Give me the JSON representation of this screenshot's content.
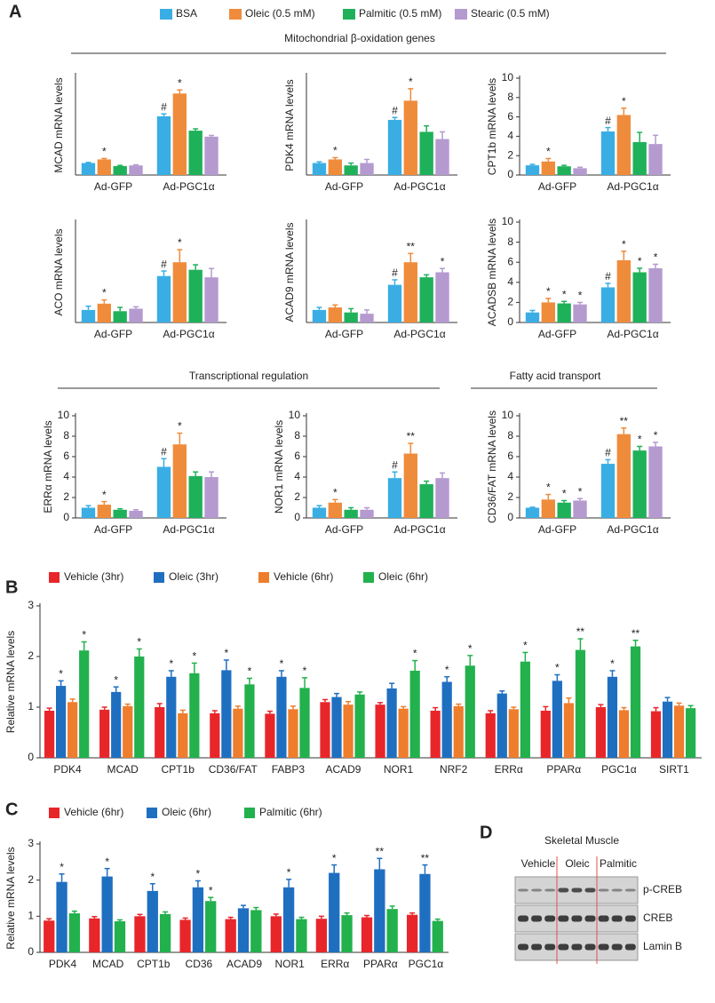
{
  "figure": {
    "panel_labels": [
      "A",
      "B",
      "C",
      "D"
    ],
    "section_headers": [
      "Mitochondrial β-oxidation genes",
      "Transcriptional regulation",
      "Fatty acid transport"
    ],
    "panel_a_legend": [
      {
        "name": "BSA",
        "color": "#3aaee4"
      },
      {
        "name": "Oleic (0.5 mM)",
        "color": "#ef8c3c"
      },
      {
        "name": "Palmitic (0.5 mM)",
        "color": "#1fb15a"
      },
      {
        "name": "Stearic (0.5 mM)",
        "color": "#b59ad0"
      }
    ]
  },
  "chart_data": [
    {
      "type": "bar",
      "ylabel": "MCAD mRNA levels",
      "categories": [
        "Ad-GFP",
        "Ad-PGC1α"
      ],
      "ylim": [
        0,
        8.3
      ],
      "series": [
        {
          "values": [
            1.0,
            4.9
          ],
          "errors": [
            0.05,
            0.2
          ],
          "markers": [
            null,
            "#"
          ]
        },
        {
          "values": [
            1.3,
            6.8
          ],
          "errors": [
            0.08,
            0.3
          ],
          "markers": [
            "*",
            "*"
          ]
        },
        {
          "values": [
            0.75,
            3.7
          ],
          "errors": [
            0.05,
            0.15
          ],
          "markers": [
            null,
            null
          ]
        },
        {
          "values": [
            0.8,
            3.2
          ],
          "errors": [
            0.05,
            0.1
          ],
          "markers": [
            null,
            null
          ]
        }
      ]
    },
    {
      "type": "bar",
      "ylabel": "PDK4 mRNA levels",
      "categories": [
        "Ad-GFP",
        "Ad-PGC1α"
      ],
      "ylim": [
        0,
        8.3
      ],
      "series": [
        {
          "values": [
            1.0,
            4.6
          ],
          "errors": [
            0.1,
            0.2
          ],
          "markers": [
            null,
            "#"
          ]
        },
        {
          "values": [
            1.3,
            6.2
          ],
          "errors": [
            0.15,
            1.0
          ],
          "markers": [
            "*",
            "*"
          ]
        },
        {
          "values": [
            0.8,
            3.6
          ],
          "errors": [
            0.2,
            0.5
          ],
          "markers": [
            null,
            null
          ]
        },
        {
          "values": [
            1.0,
            3.0
          ],
          "errors": [
            0.3,
            0.6
          ],
          "markers": [
            null,
            null
          ]
        }
      ]
    },
    {
      "type": "bar",
      "ylabel": "CPT1b mRNA levels",
      "categories": [
        "Ad-GFP",
        "Ad-PGC1α"
      ],
      "ylim": [
        0,
        10
      ],
      "yticks": [
        0,
        2,
        4,
        6,
        8,
        10
      ],
      "series": [
        {
          "values": [
            1.0,
            4.5
          ],
          "errors": [
            0.1,
            0.4
          ],
          "markers": [
            null,
            "#"
          ]
        },
        {
          "values": [
            1.4,
            6.2
          ],
          "errors": [
            0.3,
            0.7
          ],
          "markers": [
            "*",
            "*"
          ]
        },
        {
          "values": [
            0.9,
            3.4
          ],
          "errors": [
            0.1,
            1.0
          ],
          "markers": [
            null,
            null
          ]
        },
        {
          "values": [
            0.7,
            3.2
          ],
          "errors": [
            0.1,
            0.9
          ],
          "markers": [
            null,
            null
          ]
        }
      ]
    },
    {
      "type": "bar",
      "ylabel": "ACO mRNA levels",
      "categories": [
        "Ad-GFP",
        "Ad-PGC1α"
      ],
      "ylim": [
        0,
        8
      ],
      "series": [
        {
          "values": [
            1.0,
            3.7
          ],
          "errors": [
            0.3,
            0.4
          ],
          "markers": [
            null,
            "#"
          ]
        },
        {
          "values": [
            1.5,
            4.8
          ],
          "errors": [
            0.3,
            1.0
          ],
          "markers": [
            "*",
            "*"
          ]
        },
        {
          "values": [
            0.9,
            4.2
          ],
          "errors": [
            0.3,
            0.4
          ],
          "markers": [
            null,
            null
          ]
        },
        {
          "values": [
            1.1,
            3.6
          ],
          "errors": [
            0.15,
            0.7
          ],
          "markers": [
            null,
            null
          ]
        }
      ]
    },
    {
      "type": "bar",
      "ylabel": "ACAD9 mRNA levels",
      "categories": [
        "Ad-GFP",
        "Ad-PGC1α"
      ],
      "ylim": [
        0,
        8
      ],
      "series": [
        {
          "values": [
            1.0,
            3.0
          ],
          "errors": [
            0.2,
            0.4
          ],
          "markers": [
            null,
            "#"
          ]
        },
        {
          "values": [
            1.2,
            4.8
          ],
          "errors": [
            0.2,
            0.7
          ],
          "markers": [
            null,
            "**"
          ]
        },
        {
          "values": [
            0.8,
            3.6
          ],
          "errors": [
            0.3,
            0.2
          ],
          "markers": [
            null,
            null
          ]
        },
        {
          "values": [
            0.7,
            4.0
          ],
          "errors": [
            0.3,
            0.3
          ],
          "markers": [
            null,
            "*"
          ]
        }
      ]
    },
    {
      "type": "bar",
      "ylabel": "ACADSB mRNA levels",
      "categories": [
        "Ad-GFP",
        "Ad-PGC1α"
      ],
      "ylim": [
        0,
        10
      ],
      "yticks": [
        0,
        2,
        4,
        6,
        8,
        10
      ],
      "series": [
        {
          "values": [
            1.0,
            3.5
          ],
          "errors": [
            0.2,
            0.4
          ],
          "markers": [
            null,
            "#"
          ]
        },
        {
          "values": [
            2.0,
            6.2
          ],
          "errors": [
            0.4,
            0.9
          ],
          "markers": [
            "*",
            "*"
          ]
        },
        {
          "values": [
            1.9,
            5.0
          ],
          "errors": [
            0.2,
            0.4
          ],
          "markers": [
            "*",
            "*"
          ]
        },
        {
          "values": [
            1.8,
            5.4
          ],
          "errors": [
            0.2,
            0.4
          ],
          "markers": [
            "*",
            "*"
          ]
        }
      ]
    },
    {
      "type": "bar",
      "ylabel": "ERRα mRNA levels",
      "categories": [
        "Ad-GFP",
        "Ad-PGC1α"
      ],
      "ylim": [
        0,
        10
      ],
      "yticks": [
        0,
        2,
        4,
        6,
        8,
        10
      ],
      "series": [
        {
          "values": [
            1.0,
            5.0
          ],
          "errors": [
            0.2,
            0.8
          ],
          "markers": [
            null,
            "#"
          ]
        },
        {
          "values": [
            1.3,
            7.2
          ],
          "errors": [
            0.3,
            1.1
          ],
          "markers": [
            "*",
            "*"
          ]
        },
        {
          "values": [
            0.8,
            4.1
          ],
          "errors": [
            0.1,
            0.4
          ],
          "markers": [
            null,
            null
          ]
        },
        {
          "values": [
            0.7,
            4.0
          ],
          "errors": [
            0.1,
            0.5
          ],
          "markers": [
            null,
            null
          ]
        }
      ]
    },
    {
      "type": "bar",
      "ylabel": "NOR1 mRNA levels",
      "categories": [
        "Ad-GFP",
        "Ad-PGC1α"
      ],
      "ylim": [
        0,
        10
      ],
      "yticks": [
        0,
        2,
        4,
        6,
        8,
        10
      ],
      "series": [
        {
          "values": [
            1.0,
            3.9
          ],
          "errors": [
            0.2,
            0.6
          ],
          "markers": [
            null,
            "#"
          ]
        },
        {
          "values": [
            1.5,
            6.3
          ],
          "errors": [
            0.3,
            1.0
          ],
          "markers": [
            "*",
            "**"
          ]
        },
        {
          "values": [
            0.8,
            3.3
          ],
          "errors": [
            0.2,
            0.3
          ],
          "markers": [
            null,
            null
          ]
        },
        {
          "values": [
            0.8,
            3.9
          ],
          "errors": [
            0.2,
            0.5
          ],
          "markers": [
            null,
            null
          ]
        }
      ]
    },
    {
      "type": "bar",
      "ylabel": "CD36/FAT mRNA levels",
      "categories": [
        "Ad-GFP",
        "Ad-PGC1α"
      ],
      "ylim": [
        0,
        10
      ],
      "yticks": [
        0,
        2,
        4,
        6,
        8,
        10
      ],
      "series": [
        {
          "values": [
            1.0,
            5.3
          ],
          "errors": [
            0.05,
            0.4
          ],
          "markers": [
            null,
            "#"
          ]
        },
        {
          "values": [
            1.8,
            8.2
          ],
          "errors": [
            0.5,
            0.6
          ],
          "markers": [
            "*",
            "**"
          ]
        },
        {
          "values": [
            1.5,
            6.6
          ],
          "errors": [
            0.2,
            0.4
          ],
          "markers": [
            "*",
            "*"
          ]
        },
        {
          "values": [
            1.7,
            7.0
          ],
          "errors": [
            0.2,
            0.4
          ],
          "markers": [
            "*",
            "*"
          ]
        }
      ]
    },
    {
      "type": "bar",
      "ylabel": "Relative  mRNA levels",
      "categories": [
        "PDK4",
        "MCAD",
        "CPT1b",
        "CD36/FAT",
        "FABP3",
        "ACAD9",
        "NOR1",
        "NRF2",
        "ERRα",
        "PPARα",
        "PGC1α",
        "SIRT1"
      ],
      "ylim": [
        0,
        3
      ],
      "yticks": [
        0,
        1,
        2,
        3
      ],
      "series": [
        {
          "name": "Vehicle (3hr)",
          "color": "#e8262a",
          "values": [
            0.93,
            0.95,
            1.0,
            0.88,
            0.87,
            1.1,
            1.05,
            0.93,
            0.88,
            0.93,
            1.0,
            0.92
          ],
          "errors": [
            0.05,
            0.05,
            0.07,
            0.05,
            0.05,
            0.05,
            0.04,
            0.06,
            0.05,
            0.08,
            0.05,
            0.07
          ],
          "markers": [
            null,
            null,
            null,
            null,
            null,
            null,
            null,
            null,
            null,
            null,
            null,
            null
          ]
        },
        {
          "name": "Oleic (3hr)",
          "color": "#1f6fc1",
          "values": [
            1.42,
            1.3,
            1.6,
            1.73,
            1.6,
            1.2,
            1.37,
            1.5,
            1.27,
            1.52,
            1.6,
            1.11
          ],
          "errors": [
            0.1,
            0.1,
            0.12,
            0.2,
            0.12,
            0.07,
            0.1,
            0.1,
            0.05,
            0.12,
            0.12,
            0.08
          ],
          "markers": [
            "*",
            "*",
            "*",
            "*",
            "*",
            null,
            null,
            "*",
            null,
            "*",
            "*",
            null
          ]
        },
        {
          "name": "Vehicle (6hr)",
          "color": "#ee7d2d",
          "values": [
            1.1,
            1.02,
            0.88,
            0.97,
            0.96,
            1.05,
            0.97,
            1.02,
            0.96,
            1.08,
            0.94,
            1.03
          ],
          "errors": [
            0.06,
            0.04,
            0.06,
            0.05,
            0.06,
            0.06,
            0.04,
            0.04,
            0.04,
            0.1,
            0.05,
            0.05
          ],
          "markers": [
            null,
            null,
            null,
            null,
            null,
            null,
            null,
            null,
            null,
            null,
            null,
            null
          ]
        },
        {
          "name": "Oleic (6hr)",
          "color": "#22b14c",
          "values": [
            2.12,
            2.0,
            1.67,
            1.45,
            1.38,
            1.25,
            1.72,
            1.82,
            1.9,
            2.13,
            2.2,
            0.98
          ],
          "errors": [
            0.17,
            0.15,
            0.2,
            0.12,
            0.2,
            0.05,
            0.2,
            0.2,
            0.18,
            0.22,
            0.12,
            0.05
          ],
          "markers": [
            "*",
            "*",
            "*",
            "*",
            "*",
            null,
            "*",
            "*",
            "*",
            "**",
            "**",
            null
          ]
        }
      ]
    },
    {
      "type": "bar",
      "ylabel": "Relative mRNA levels",
      "categories": [
        "PDK4",
        "MCAD",
        "CPT1b",
        "CD36",
        "ACAD9",
        "NOR1",
        "ERRα",
        "PPARα",
        "PGC1α"
      ],
      "ylim": [
        0,
        3
      ],
      "yticks": [
        0,
        1,
        2,
        3
      ],
      "series": [
        {
          "name": "Vehicle (6hr)",
          "color": "#e8262a",
          "values": [
            0.88,
            0.94,
            1.0,
            0.9,
            0.92,
            1.0,
            0.93,
            0.97,
            1.04
          ],
          "errors": [
            0.05,
            0.05,
            0.05,
            0.05,
            0.05,
            0.06,
            0.07,
            0.05,
            0.05
          ],
          "markers": [
            null,
            null,
            null,
            null,
            null,
            null,
            null,
            null,
            null
          ]
        },
        {
          "name": "Oleic (6hr)",
          "color": "#1f6fc1",
          "values": [
            1.95,
            2.1,
            1.7,
            1.8,
            1.22,
            1.8,
            2.2,
            2.3,
            2.17
          ],
          "errors": [
            0.22,
            0.22,
            0.2,
            0.18,
            0.08,
            0.22,
            0.22,
            0.3,
            0.25
          ],
          "markers": [
            "*",
            "*",
            "*",
            "*",
            null,
            "*",
            "*",
            "**",
            "**"
          ]
        },
        {
          "name": "Palmitic (6hr)",
          "color": "#22b14c",
          "values": [
            1.08,
            0.86,
            1.06,
            1.42,
            1.17,
            0.92,
            1.03,
            1.2,
            0.87
          ],
          "errors": [
            0.06,
            0.04,
            0.06,
            0.1,
            0.07,
            0.05,
            0.06,
            0.08,
            0.05
          ],
          "markers": [
            null,
            null,
            null,
            "*",
            null,
            null,
            null,
            null,
            null
          ]
        }
      ]
    }
  ],
  "blot": {
    "title": "Skeletal Muscle",
    "groups": [
      "Vehicle",
      "Oleic",
      "Palmitic"
    ],
    "rows": [
      "p-CREB",
      "CREB",
      "Lamin B"
    ]
  }
}
